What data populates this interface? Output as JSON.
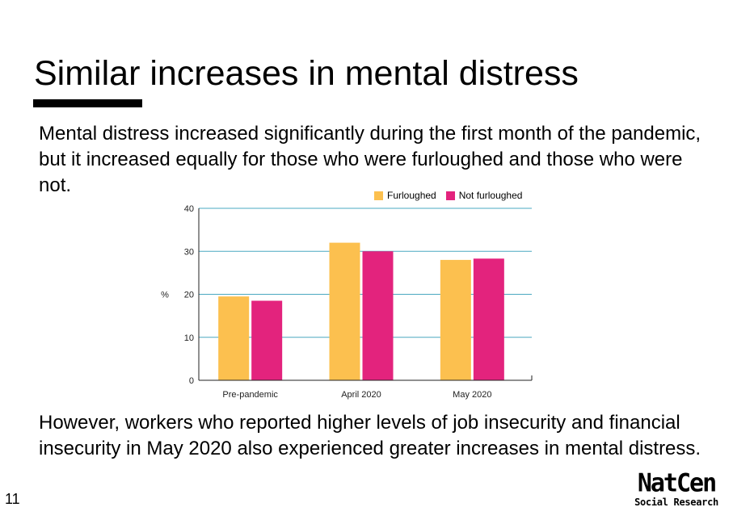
{
  "slide": {
    "title": "Similar increases in mental distress",
    "intro": "Mental distress increased significantly during the first month of the pandemic, but it increased equally for those who were furloughed and those who were not.",
    "outro": "However, workers who reported higher levels of job insecurity and financial insecurity in May 2020 also experienced greater increases in mental distress.",
    "page_number": "11"
  },
  "logo": {
    "main": "NatCen",
    "sub": "Social Research"
  },
  "chart_data": {
    "type": "bar",
    "title": "",
    "xlabel": "",
    "ylabel": "%",
    "categories": [
      "Pre-pandemic",
      "April 2020",
      "May 2020"
    ],
    "series": [
      {
        "name": "Furloughed",
        "values": [
          19.5,
          32,
          28
        ],
        "color": "#fcc04f"
      },
      {
        "name": "Not furloughed",
        "values": [
          18.5,
          30,
          28.3
        ],
        "color": "#e3237d"
      }
    ],
    "ylim": [
      0,
      40
    ],
    "yticks": [
      0,
      10,
      20,
      30,
      40
    ],
    "grid": true,
    "grid_color": "#4aa8c0",
    "legend_position": "top-right"
  }
}
